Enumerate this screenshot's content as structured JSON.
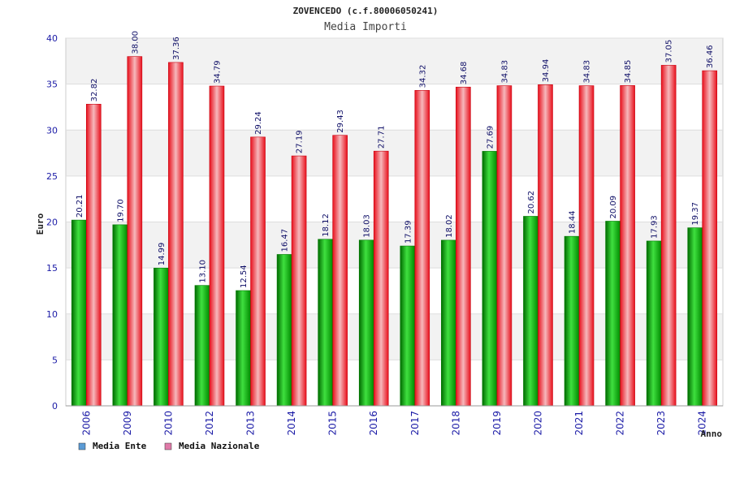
{
  "chart_data": {
    "type": "bar",
    "title": "ZOVENCEDO (c.f.80006050241)",
    "subtitle": "Media Importi",
    "ylabel": "Euro",
    "xlabel": "Anno",
    "ylim": [
      0,
      40
    ],
    "yticks": [
      0,
      5,
      10,
      15,
      20,
      25,
      30,
      35,
      40
    ],
    "grid": true,
    "legend_position": "bottom-left",
    "categories": [
      "2006",
      "2009",
      "2010",
      "2012",
      "2013",
      "2014",
      "2015",
      "2016",
      "2017",
      "2018",
      "2019",
      "2020",
      "2021",
      "2022",
      "2023",
      "2024"
    ],
    "series": [
      {
        "name": "Media Ente",
        "color": "#00b300",
        "legend_color": "#5b9bd5",
        "values": [
          20.21,
          19.7,
          14.99,
          13.1,
          12.54,
          16.47,
          18.12,
          18.03,
          17.39,
          18.02,
          27.69,
          20.62,
          18.44,
          20.09,
          17.93,
          19.37
        ],
        "labels": [
          "20.21",
          "19.70",
          "14.99",
          "13.10",
          "12.54",
          "16.47",
          "18.12",
          "18.03",
          "17.39",
          "18.02",
          "27.69",
          "20.62",
          "18.44",
          "20.09",
          "17.93",
          "19.37"
        ]
      },
      {
        "name": "Media Nazionale",
        "color": "#e8101c",
        "legend_color": "#e07aa8",
        "values": [
          32.82,
          38.0,
          37.36,
          34.79,
          29.24,
          27.19,
          29.43,
          27.71,
          34.32,
          34.68,
          34.83,
          34.94,
          34.83,
          34.85,
          37.05,
          36.46
        ],
        "labels": [
          "32.82",
          "38.00",
          "37.36",
          "34.79",
          "29.24",
          "27.19",
          "29.43",
          "27.71",
          "34.32",
          "34.68",
          "34.83",
          "34.94",
          "34.83",
          "34.85",
          "37.05",
          "36.46"
        ]
      }
    ]
  }
}
